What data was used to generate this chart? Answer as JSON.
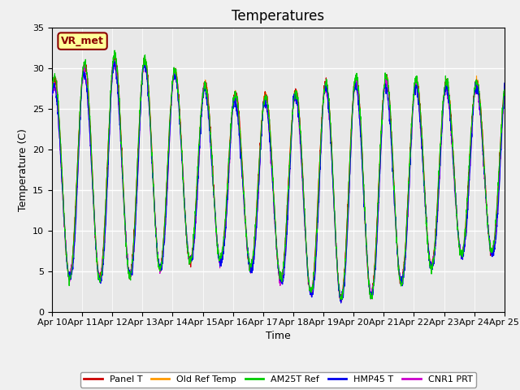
{
  "title": "Temperatures",
  "xlabel": "Time",
  "ylabel": "Temperature (C)",
  "xlim": [
    0,
    15
  ],
  "ylim": [
    0,
    35
  ],
  "yticks": [
    0,
    5,
    10,
    15,
    20,
    25,
    30,
    35
  ],
  "xtick_labels": [
    "Apr 10",
    "Apr 11",
    "Apr 12",
    "Apr 13",
    "Apr 14",
    "Apr 15",
    "Apr 16",
    "Apr 17",
    "Apr 18",
    "Apr 19",
    "Apr 20",
    "Apr 21",
    "Apr 22",
    "Apr 23",
    "Apr 24",
    "Apr 25"
  ],
  "legend_entries": [
    "Panel T",
    "Old Ref Temp",
    "AM25T Ref",
    "HMP45 T",
    "CNR1 PRT"
  ],
  "colors": {
    "Panel T": "#cc0000",
    "Old Ref Temp": "#ff9900",
    "AM25T Ref": "#00cc00",
    "HMP45 T": "#0000ee",
    "CNR1 PRT": "#cc00cc"
  },
  "annotation_text": "VR_met",
  "plot_bg_color": "#e8e8e8",
  "fig_bg_color": "#f0f0f0",
  "grid_color": "#ffffff",
  "title_fontsize": 12,
  "axis_fontsize": 9,
  "tick_fontsize": 8,
  "legend_fontsize": 8
}
